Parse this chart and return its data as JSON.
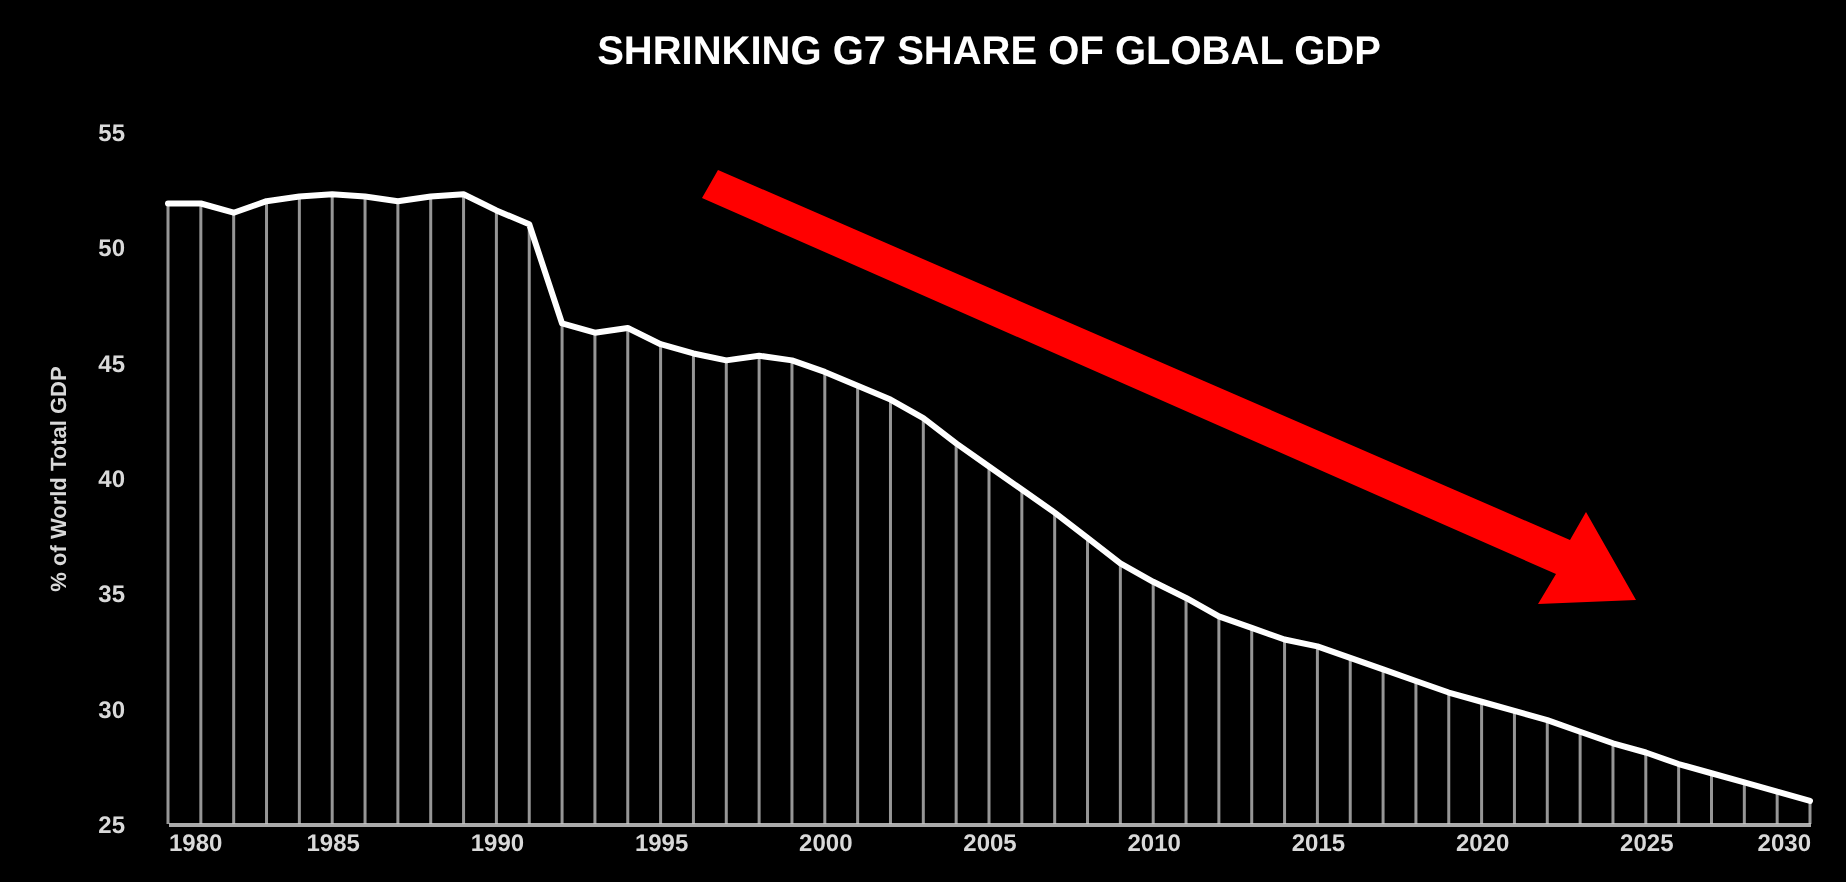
{
  "chart_data": {
    "type": "line",
    "title": "SHRINKING G7 SHARE OF GLOBAL GDP",
    "ylabel": "% of World Total GDP",
    "x": [
      1980,
      1981,
      1982,
      1983,
      1984,
      1985,
      1986,
      1987,
      1988,
      1989,
      1990,
      1991,
      1992,
      1993,
      1994,
      1995,
      1996,
      1997,
      1998,
      1999,
      2000,
      2001,
      2002,
      2003,
      2004,
      2005,
      2006,
      2007,
      2008,
      2009,
      2010,
      2011,
      2012,
      2013,
      2014,
      2015,
      2016,
      2017,
      2018,
      2019,
      2020,
      2021,
      2022,
      2023,
      2024,
      2025,
      2026,
      2027,
      2028,
      2029,
      2030
    ],
    "series": [
      {
        "type": "bar",
        "color": "#c8c8c8",
        "values": [
          51.9,
          51.9,
          51.5,
          52.0,
          52.2,
          52.3,
          52.2,
          52.0,
          52.2,
          52.3,
          51.6,
          51.0,
          46.7,
          46.3,
          46.5,
          45.8,
          45.4,
          45.1,
          45.3,
          45.1,
          44.6,
          44.0,
          43.4,
          42.6,
          41.5,
          40.5,
          39.5,
          38.5,
          37.4,
          36.3,
          35.5,
          34.8,
          34.0,
          33.5,
          33.0,
          32.7,
          32.2,
          31.7,
          31.2,
          30.7,
          30.3,
          29.9,
          29.5,
          29.0,
          28.5,
          28.1,
          27.6,
          27.2,
          26.8,
          26.4,
          26.0
        ]
      },
      {
        "color": "#ffffff",
        "values": [
          51.9,
          51.9,
          51.5,
          52.0,
          52.2,
          52.3,
          52.2,
          52.0,
          52.2,
          52.3,
          51.6,
          51.0,
          46.7,
          46.3,
          46.5,
          45.8,
          45.4,
          45.1,
          45.3,
          45.1,
          44.6,
          44.0,
          43.4,
          42.6,
          41.5,
          40.5,
          39.5,
          38.5,
          37.4,
          36.3,
          35.5,
          34.8,
          34.0,
          33.5,
          33.0,
          32.7,
          32.2,
          31.7,
          31.2,
          30.7,
          30.3,
          29.9,
          29.5,
          29.0,
          28.5,
          28.1,
          27.6,
          27.2,
          26.8,
          26.4,
          26.0
        ]
      }
    ],
    "xlim": [
      1980,
      2030
    ],
    "xticks": [
      1980,
      1985,
      1990,
      1995,
      2000,
      2005,
      2010,
      2015,
      2020,
      2025,
      2030
    ],
    "ylim": [
      25,
      55
    ],
    "yticks": [
      25,
      30,
      35,
      40,
      45,
      50,
      55
    ]
  }
}
